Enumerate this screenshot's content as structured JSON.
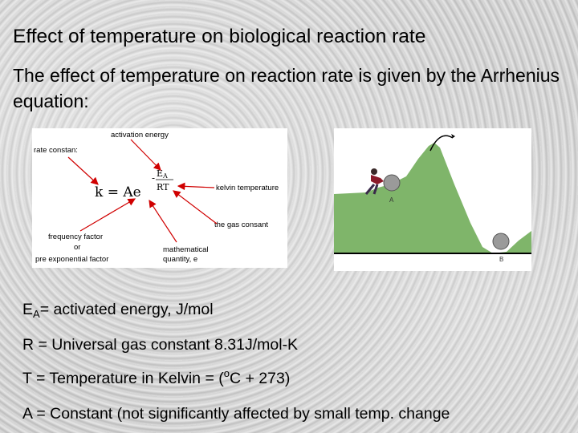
{
  "title": "Effect of temperature on biological reaction rate",
  "intro": "The effect of temperature on reaction rate is given by the Arrhenius equation:",
  "equation_figure": {
    "label_activation_energy": "activation energy",
    "label_rate_constant": "rate constan:",
    "label_kelvin": "kelvin temperature",
    "label_gas_constant": "the gas consant",
    "label_frequency_1": "frequency factor",
    "label_frequency_2": "or",
    "label_frequency_3": "pre exponential factor",
    "label_math_1": "mathematical",
    "label_math_2": "quantity, e",
    "eq_lhs": "k  =  Ae",
    "eq_minus": "-",
    "eq_num": "E",
    "eq_num_sub": "A",
    "eq_den": "RT",
    "arrow_color": "#d00000"
  },
  "hill_figure": {
    "label_a": "A",
    "label_b": "B",
    "hill_color": "#7fb56a",
    "boulder_color": "#9a9a9a"
  },
  "definitions": {
    "ea_symbol": "E",
    "ea_sub": "A",
    "ea_text": "= activated energy, J/mol",
    "r_text": "R = Universal gas constant 8.31J/mol-K",
    "t_text_before": "T = Temperature in Kelvin = (",
    "t_sup": "o",
    "t_text_after": "C + 273)",
    "a_text": "A =  Constant (not significantly affected by small temp. change"
  }
}
